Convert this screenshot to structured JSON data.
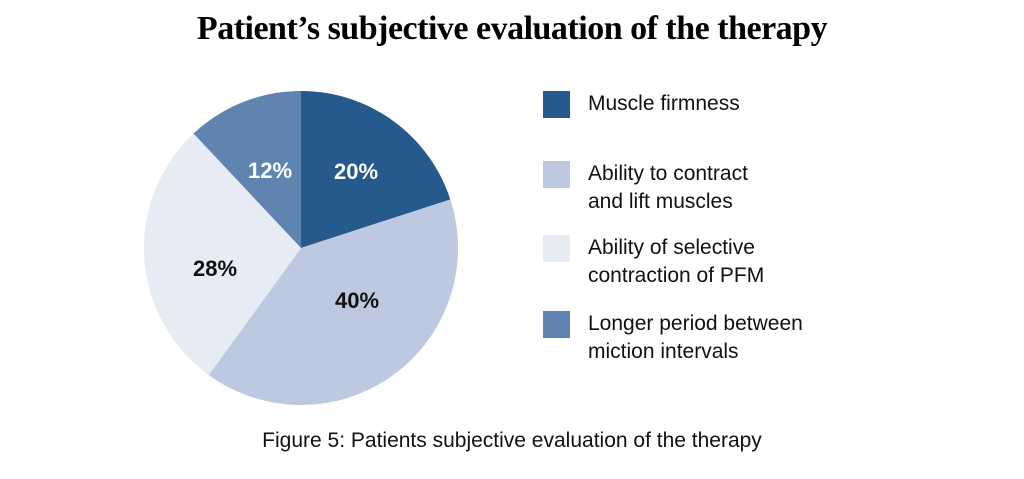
{
  "title": "Patient’s subjective evaluation of the therapy",
  "caption": "Figure 5: Patients subjective evaluation of the therapy",
  "chart_data": {
    "type": "pie",
    "title": "Patient’s subjective evaluation of the therapy",
    "start_angle_deg": 0,
    "direction": "clockwise",
    "legend_position": "right",
    "slices": [
      {
        "label": "Muscle firmness",
        "value": 20,
        "display": "20%",
        "color": "#26598c",
        "label_color": "#ffffff"
      },
      {
        "label": "Ability to contract and lift muscles",
        "value": 40,
        "display": "40%",
        "color": "#bdc9e0",
        "label_color": "#111111"
      },
      {
        "label": "Ability of selective contraction of PFM",
        "value": 28,
        "display": "28%",
        "color": "#e7ebf3",
        "label_color": "#111111"
      },
      {
        "label": "Longer period between miction intervals",
        "value": 12,
        "display": "12%",
        "color": "#5e84af",
        "label_color": "#ffffff"
      }
    ]
  },
  "legend": {
    "items": [
      {
        "color": "#26598c",
        "lines": [
          "Muscle firmness"
        ]
      },
      {
        "color": "#bdc9e0",
        "lines": [
          "Ability to contract",
          "and lift muscles"
        ]
      },
      {
        "color": "#e7ebf3",
        "lines": [
          "Ability of selective",
          "contraction of PFM"
        ]
      },
      {
        "color": "#5e84af",
        "lines": [
          "Longer period between",
          "miction intervals"
        ]
      }
    ]
  }
}
